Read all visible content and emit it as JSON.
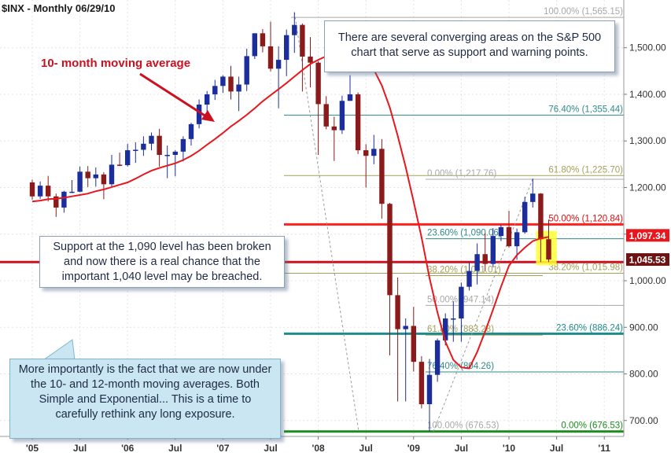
{
  "header": {
    "title": "$INX - Monthly  06/29/10"
  },
  "chart_data": {
    "type": "candlestick",
    "ticker": "$INX",
    "period": "Monthly",
    "date": "06/29/10",
    "ylim": [
      676.53,
      1576.09
    ],
    "y_ticks": [
      700,
      800,
      900,
      1000,
      1100,
      1200,
      1300,
      1400,
      1500
    ],
    "y_tick_labels": [
      "700.00",
      "800.00",
      "900.00",
      "1,000.00",
      "1,100.00",
      "1,200.00",
      "1,300.00",
      "1,400.00",
      "1,500.00"
    ],
    "x_tick_labels": [
      {
        "label": "'05",
        "index": 0
      },
      {
        "label": "Jul",
        "index": 6
      },
      {
        "label": "'06",
        "index": 12
      },
      {
        "label": "Jul",
        "index": 18
      },
      {
        "label": "'07",
        "index": 24
      },
      {
        "label": "Jul",
        "index": 30
      },
      {
        "label": "'08",
        "index": 36
      },
      {
        "label": "Jul",
        "index": 42
      },
      {
        "label": "'09",
        "index": 48
      },
      {
        "label": "Jul",
        "index": 54
      },
      {
        "label": "'10",
        "index": 60
      },
      {
        "label": "Jul",
        "index": 66
      },
      {
        "label": "'11",
        "index": 72
      }
    ],
    "candles": [
      {
        "o": 1211,
        "h": 1217,
        "c": 1181,
        "l": 1174
      },
      {
        "o": 1181,
        "h": 1213,
        "c": 1204,
        "l": 1176
      },
      {
        "o": 1204,
        "h": 1225,
        "c": 1181,
        "l": 1170
      },
      {
        "o": 1181,
        "h": 1187,
        "c": 1157,
        "l": 1137
      },
      {
        "o": 1157,
        "h": 1193,
        "c": 1191,
        "l": 1146
      },
      {
        "o": 1191,
        "h": 1216,
        "c": 1191,
        "l": 1188
      },
      {
        "o": 1191,
        "h": 1245,
        "c": 1234,
        "l": 1190
      },
      {
        "o": 1234,
        "h": 1246,
        "c": 1220,
        "l": 1201
      },
      {
        "o": 1220,
        "h": 1243,
        "c": 1228,
        "l": 1202
      },
      {
        "o": 1228,
        "h": 1233,
        "c": 1207,
        "l": 1175
      },
      {
        "o": 1207,
        "h": 1270,
        "c": 1249,
        "l": 1201
      },
      {
        "o": 1249,
        "h": 1275,
        "c": 1248,
        "l": 1246
      },
      {
        "o": 1248,
        "h": 1294,
        "c": 1280,
        "l": 1245
      },
      {
        "o": 1280,
        "h": 1297,
        "c": 1281,
        "l": 1253
      },
      {
        "o": 1281,
        "h": 1310,
        "c": 1294,
        "l": 1268
      },
      {
        "o": 1294,
        "h": 1318,
        "c": 1311,
        "l": 1280
      },
      {
        "o": 1311,
        "h": 1326,
        "c": 1270,
        "l": 1245
      },
      {
        "o": 1270,
        "h": 1290,
        "c": 1270,
        "l": 1220
      },
      {
        "o": 1270,
        "h": 1280,
        "c": 1277,
        "l": 1224
      },
      {
        "o": 1277,
        "h": 1310,
        "c": 1304,
        "l": 1256
      },
      {
        "o": 1304,
        "h": 1339,
        "c": 1336,
        "l": 1290
      },
      {
        "o": 1336,
        "h": 1389,
        "c": 1378,
        "l": 1327
      },
      {
        "o": 1378,
        "h": 1407,
        "c": 1400,
        "l": 1360
      },
      {
        "o": 1400,
        "h": 1431,
        "c": 1418,
        "l": 1388
      },
      {
        "o": 1418,
        "h": 1441,
        "c": 1438,
        "l": 1403
      },
      {
        "o": 1438,
        "h": 1461,
        "c": 1406,
        "l": 1389
      },
      {
        "o": 1406,
        "h": 1438,
        "c": 1421,
        "l": 1364
      },
      {
        "o": 1421,
        "h": 1498,
        "c": 1482,
        "l": 1407
      },
      {
        "o": 1482,
        "h": 1531,
        "c": 1531,
        "l": 1476
      },
      {
        "o": 1531,
        "h": 1540,
        "c": 1503,
        "l": 1490
      },
      {
        "o": 1503,
        "h": 1556,
        "c": 1455,
        "l": 1449
      },
      {
        "o": 1455,
        "h": 1503,
        "c": 1474,
        "l": 1370
      },
      {
        "o": 1474,
        "h": 1539,
        "c": 1527,
        "l": 1439
      },
      {
        "o": 1527,
        "h": 1576,
        "c": 1549,
        "l": 1489
      },
      {
        "o": 1549,
        "h": 1552,
        "c": 1481,
        "l": 1406
      },
      {
        "o": 1481,
        "h": 1523,
        "c": 1468,
        "l": 1415
      },
      {
        "o": 1468,
        "h": 1471,
        "c": 1379,
        "l": 1270
      },
      {
        "o": 1379,
        "h": 1396,
        "c": 1331,
        "l": 1325
      },
      {
        "o": 1331,
        "h": 1352,
        "c": 1323,
        "l": 1257
      },
      {
        "o": 1323,
        "h": 1397,
        "c": 1386,
        "l": 1315
      },
      {
        "o": 1386,
        "h": 1441,
        "c": 1400,
        "l": 1386
      },
      {
        "o": 1400,
        "h": 1404,
        "c": 1280,
        "l": 1272
      },
      {
        "o": 1280,
        "h": 1293,
        "c": 1268,
        "l": 1200
      },
      {
        "o": 1268,
        "h": 1313,
        "c": 1283,
        "l": 1250
      },
      {
        "o": 1283,
        "h": 1304,
        "c": 1165,
        "l": 1133
      },
      {
        "o": 1165,
        "h": 1167,
        "c": 969,
        "l": 840
      },
      {
        "o": 969,
        "h": 1007,
        "c": 896,
        "l": 741
      },
      {
        "o": 896,
        "h": 919,
        "c": 903,
        "l": 741
      },
      {
        "o": 903,
        "h": 944,
        "c": 826,
        "l": 805
      },
      {
        "o": 826,
        "h": 838,
        "c": 735,
        "l": 726
      },
      {
        "o": 735,
        "h": 832,
        "c": 798,
        "l": 676.53
      },
      {
        "o": 798,
        "h": 876,
        "c": 872,
        "l": 783
      },
      {
        "o": 872,
        "h": 930,
        "c": 919,
        "l": 861
      },
      {
        "o": 919,
        "h": 956,
        "c": 919,
        "l": 869
      },
      {
        "o": 919,
        "h": 996,
        "c": 987,
        "l": 869
      },
      {
        "o": 987,
        "h": 1040,
        "c": 1021,
        "l": 979
      },
      {
        "o": 1021,
        "h": 1080,
        "c": 1057,
        "l": 992
      },
      {
        "o": 1057,
        "h": 1102,
        "c": 1036,
        "l": 1020
      },
      {
        "o": 1036,
        "h": 1113,
        "c": 1096,
        "l": 1029
      },
      {
        "o": 1096,
        "h": 1120,
        "c": 1115,
        "l": 1085
      },
      {
        "o": 1115,
        "h": 1150,
        "c": 1074,
        "l": 1071
      },
      {
        "o": 1074,
        "h": 1112,
        "c": 1104,
        "l": 1045
      },
      {
        "o": 1104,
        "h": 1180,
        "c": 1169,
        "l": 1101
      },
      {
        "o": 1169,
        "h": 1219,
        "c": 1187,
        "l": 1157
      },
      {
        "o": 1187,
        "h": 1188,
        "c": 1089,
        "l": 1040
      },
      {
        "o": 1089,
        "h": 1131,
        "c": 1045.53,
        "l": 1040
      }
    ],
    "series": [
      {
        "name": "10- month moving average",
        "values": [
          1170,
          1172,
          1175,
          1176,
          1178,
          1181,
          1184,
          1187,
          1192,
          1196,
          1201,
          1206,
          1211,
          1219,
          1228,
          1236,
          1242,
          1247,
          1252,
          1259,
          1268,
          1279,
          1292,
          1304,
          1317,
          1331,
          1343,
          1356,
          1370,
          1385,
          1398,
          1411,
          1424,
          1438,
          1452,
          1465,
          1474,
          1482,
          1488,
          1494,
          1499,
          1496,
          1476,
          1453,
          1419,
          1372,
          1311,
          1244,
          1170,
          1093,
          1006,
          932,
          869,
          830,
          814,
          812,
          847,
          891,
          938,
          987,
          1032,
          1055,
          1071,
          1085,
          1091,
          1094
        ]
      }
    ],
    "fib_levels": [
      {
        "label": "100.00% (1,565.15)",
        "value": 1565.15,
        "color": "#a8a8a8",
        "width": 1
      },
      {
        "label": "76.40% (1,355.44)",
        "value": 1355.44,
        "color": "#2f8a8a",
        "width": 1
      },
      {
        "label": "61.80% (1,225.70)",
        "value": 1225.7,
        "color": "#a1a15a",
        "width": 1
      },
      {
        "label": "0.00% (1,217.76)",
        "value": 1217.76,
        "color": "#a8a8a8",
        "width": 1
      },
      {
        "label": "50.00% (1,120.84)",
        "value": 1120.84,
        "color": "#ff2020",
        "width": 3
      },
      {
        "label": "23.60% (1,090.06)",
        "value": 1090.06,
        "color": "#2f8a8a",
        "width": 1
      },
      {
        "label": "38.20% (1,011.01)",
        "value": 1011.01,
        "color": "#a1a15a",
        "width": 1
      },
      {
        "label": "38.20% (1,015.98)",
        "value": 1015.98,
        "color": "#a1a15a",
        "width": 1
      },
      {
        "label": "50.00% (947.14)",
        "value": 947.14,
        "color": "#a8a8a8",
        "width": 1
      },
      {
        "label": "61.80% (883.28)",
        "value": 883.28,
        "color": "#a1a15a",
        "width": 1
      },
      {
        "label": "23.60% (886.24)",
        "value": 886.24,
        "color": "#1f8a8a",
        "width": 3
      },
      {
        "label": "76.40% (804.26)",
        "value": 804.26,
        "color": "#2f8a8a",
        "width": 1
      },
      {
        "label": "100.00% (676.53)",
        "value": 676.53,
        "color": "#a8a8a8",
        "width": 1
      },
      {
        "label": "0.00% (676.53)",
        "value": 676.53,
        "color": "#1f8a1f",
        "width": 3
      }
    ],
    "support_lines": [
      {
        "value": 1040,
        "color": "#cc1020",
        "width": 3
      }
    ],
    "price_tags": [
      {
        "label": "1,097.34",
        "value": 1097.34,
        "color": "#e8171e"
      },
      {
        "label": "1,045.53",
        "value": 1045.53,
        "color": "#6e1313"
      }
    ],
    "colors": {
      "up": "#1b2e9c",
      "down": "#8b1a1a",
      "ma": "#e8171e",
      "highlight": "#ffff33",
      "trend": "#9a9a9a"
    },
    "annotations": {
      "ma_label": "10- month moving average",
      "top": "There are several converging areas on the S&P 500 chart that serve as support and warning points.",
      "middle": "Support at the 1,090 level has been broken and now there is a real chance that the important 1,040 level may be breached.",
      "bottom": "More importantly is the fact that we are now under the 10- and 12-month moving averages. Both Simple and Exponential... This is a time to carefully rethink any long exposure."
    }
  }
}
